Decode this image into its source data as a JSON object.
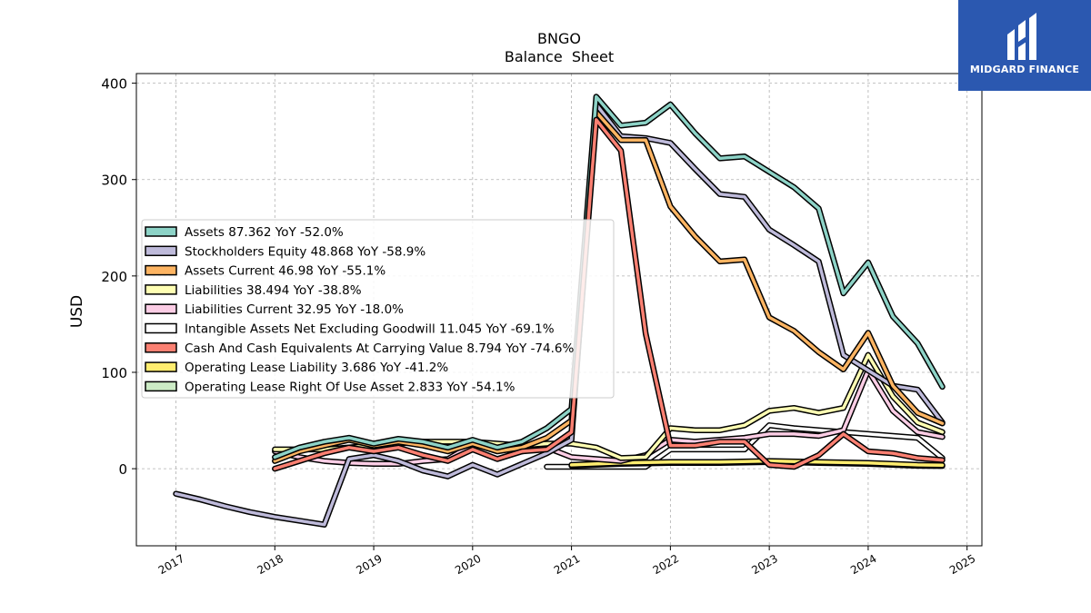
{
  "brand": {
    "name": "MIDGARD FINANCE",
    "color": "#2b58b0"
  },
  "chart_data": {
    "type": "line",
    "title": "BNGO",
    "subtitle": "Balance  Sheet",
    "xlabel": "",
    "ylabel": "USD",
    "xlim": [
      2016.6,
      2025.15
    ],
    "ylim": [
      -80,
      410
    ],
    "x_ticks": [
      "2017",
      "2018",
      "2019",
      "2020",
      "2021",
      "2022",
      "2023",
      "2024",
      "2025"
    ],
    "y_ticks": [
      "0",
      "100",
      "200",
      "300",
      "400"
    ],
    "grid": true,
    "legend_position": "center-left",
    "series": [
      {
        "name": "Assets",
        "legend": "Assets  87.362 YoY -52.0%",
        "color": "#8dd3c7",
        "x": [
          2018.0,
          2018.25,
          2018.5,
          2018.75,
          2019.0,
          2019.25,
          2019.5,
          2019.75,
          2020.0,
          2020.25,
          2020.5,
          2020.75,
          2021.0,
          2021.25,
          2021.5,
          2021.75,
          2022.0,
          2022.25,
          2022.5,
          2022.75,
          2023.0,
          2023.25,
          2023.5,
          2023.75,
          2024.0,
          2024.25,
          2024.5,
          2024.75
        ],
        "y": [
          12,
          22,
          28,
          32,
          26,
          31,
          28,
          22,
          30,
          22,
          28,
          42,
          62,
          386,
          356,
          359,
          378,
          348,
          322,
          324,
          308,
          292,
          270,
          182,
          214,
          158,
          130,
          85
        ]
      },
      {
        "name": "Stockholders Equity",
        "legend": "Stockholders Equity  48.868 YoY -58.9%",
        "color": "#bebada",
        "x": [
          2017.0,
          2017.25,
          2017.5,
          2017.75,
          2018.0,
          2018.25,
          2018.5,
          2018.75,
          2019.0,
          2019.25,
          2019.5,
          2019.75,
          2020.0,
          2020.25,
          2020.5,
          2020.75,
          2021.0,
          2021.25,
          2021.5,
          2021.75,
          2022.0,
          2022.25,
          2022.5,
          2022.75,
          2023.0,
          2023.25,
          2023.5,
          2023.75,
          2024.0,
          2024.25,
          2024.5,
          2024.75
        ],
        "y": [
          -26,
          -32,
          -39,
          -45,
          -50,
          -54,
          -58,
          10,
          14,
          8,
          -2,
          -8,
          4,
          -6,
          5,
          16,
          30,
          378,
          345,
          343,
          338,
          311,
          285,
          282,
          248,
          232,
          215,
          118,
          102,
          86,
          82,
          48
        ]
      },
      {
        "name": "Assets Current",
        "legend": "Assets Current  46.98 YoY -55.1%",
        "color": "#fdb462",
        "x": [
          2018.0,
          2018.25,
          2018.5,
          2018.75,
          2019.0,
          2019.25,
          2019.5,
          2019.75,
          2020.0,
          2020.25,
          2020.5,
          2020.75,
          2021.0,
          2021.25,
          2021.5,
          2021.75,
          2022.0,
          2022.25,
          2022.5,
          2022.75,
          2023.0,
          2023.25,
          2023.5,
          2023.75,
          2024.0,
          2024.25,
          2024.5,
          2024.75
        ],
        "y": [
          8,
          18,
          24,
          30,
          24,
          28,
          24,
          18,
          26,
          18,
          22,
          32,
          50,
          370,
          341,
          341,
          272,
          241,
          215,
          217,
          157,
          143,
          121,
          103,
          141,
          86,
          58,
          47
        ]
      },
      {
        "name": "Liabilities",
        "legend": "Liabilities  38.494 YoY -38.8%",
        "color": "#ffffb3",
        "x": [
          2018.0,
          2018.25,
          2018.5,
          2018.75,
          2019.0,
          2019.25,
          2019.5,
          2019.75,
          2020.0,
          2020.25,
          2020.5,
          2020.75,
          2021.0,
          2021.25,
          2021.5,
          2021.75,
          2022.0,
          2022.25,
          2022.5,
          2022.75,
          2023.0,
          2023.25,
          2023.5,
          2023.75,
          2024.0,
          2024.25,
          2024.5,
          2024.75
        ],
        "y": [
          20,
          20,
          20,
          22,
          24,
          26,
          28,
          28,
          28,
          26,
          24,
          26,
          26,
          22,
          11,
          12,
          42,
          40,
          40,
          45,
          60,
          63,
          58,
          63,
          118,
          75,
          48,
          38
        ]
      },
      {
        "name": "Liabilities Current",
        "legend": "Liabilities Current  32.95 YoY -18.0%",
        "color": "#fccde5",
        "x": [
          2018.0,
          2018.25,
          2018.5,
          2018.75,
          2019.0,
          2019.25,
          2019.5,
          2019.75,
          2020.0,
          2020.25,
          2020.5,
          2020.75,
          2021.0,
          2021.25,
          2021.5,
          2021.75,
          2022.0,
          2022.25,
          2022.5,
          2022.75,
          2023.0,
          2023.25,
          2023.5,
          2023.75,
          2024.0,
          2024.25,
          2024.5,
          2024.75
        ],
        "y": [
          18,
          12,
          8,
          6,
          5,
          5,
          8,
          10,
          25,
          22,
          18,
          22,
          12,
          10,
          8,
          14,
          30,
          28,
          30,
          32,
          36,
          36,
          34,
          40,
          102,
          60,
          38,
          33
        ]
      },
      {
        "name": "Intangible Assets Net Excluding Goodwill",
        "legend": "Intangible Assets Net Excluding Goodwill  11.045 YoY -69.1%",
        "color": "#ffffff",
        "x": [
          2020.75,
          2021.0,
          2021.25,
          2021.5,
          2021.75,
          2022.0,
          2022.25,
          2022.5,
          2022.75,
          2023.0,
          2023.25,
          2023.5,
          2023.75,
          2024.0,
          2024.25,
          2024.5,
          2024.75
        ],
        "y": [
          2,
          2,
          2,
          2,
          2,
          20,
          20,
          20,
          20,
          45,
          42,
          40,
          38,
          36,
          34,
          32,
          11
        ]
      },
      {
        "name": "Cash And Cash Equivalents At Carrying Value",
        "legend": "Cash And Cash Equivalents At Carrying Value  8.794 YoY -74.6%",
        "color": "#fb8072",
        "x": [
          2018.0,
          2018.25,
          2018.5,
          2018.75,
          2019.0,
          2019.25,
          2019.5,
          2019.75,
          2020.0,
          2020.25,
          2020.5,
          2020.75,
          2021.0,
          2021.25,
          2021.5,
          2021.75,
          2022.0,
          2022.25,
          2022.5,
          2022.75,
          2023.0,
          2023.25,
          2023.5,
          2023.75,
          2024.0,
          2024.25,
          2024.5,
          2024.75
        ],
        "y": [
          0,
          8,
          16,
          22,
          18,
          22,
          14,
          8,
          20,
          10,
          18,
          20,
          38,
          362,
          330,
          140,
          24,
          24,
          28,
          28,
          4,
          2,
          14,
          36,
          18,
          16,
          11,
          9
        ]
      },
      {
        "name": "Operating Lease Liability",
        "legend": "Operating Lease Liability  3.686 YoY -41.2%",
        "color": "#ffed6f",
        "x": [
          2021.0,
          2021.5,
          2022.0,
          2022.5,
          2023.0,
          2023.5,
          2024.0,
          2024.5,
          2024.75
        ],
        "y": [
          4,
          6,
          7,
          7,
          8,
          7,
          6,
          4,
          3.7
        ]
      },
      {
        "name": "Operating Lease Right Of Use Asset",
        "legend": "Operating Lease Right Of Use Asset  2.833 YoY -54.1%",
        "color": "#ccebc5",
        "x": [
          2021.0,
          2021.5,
          2022.0,
          2022.5,
          2023.0,
          2023.5,
          2024.0,
          2024.5,
          2024.75
        ],
        "y": [
          3,
          5,
          6,
          6,
          7,
          6,
          5,
          3,
          2.8
        ]
      }
    ]
  }
}
